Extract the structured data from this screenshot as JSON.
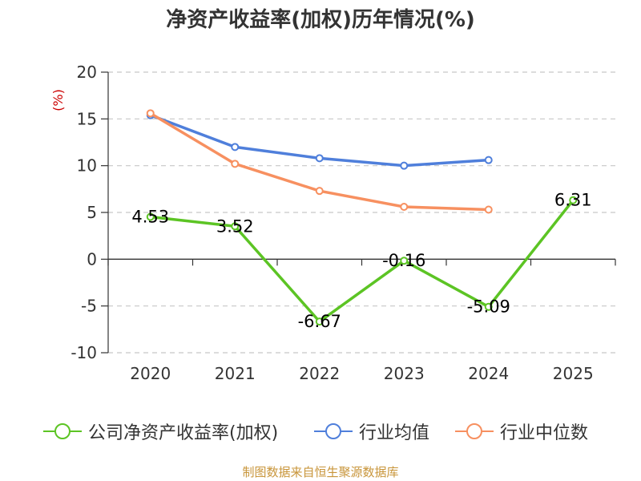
{
  "chart_data": {
    "type": "line",
    "title": "净资产收益率(加权)历年情况(%)",
    "ylabel": "(%)",
    "xlabel": "",
    "categories": [
      "2020",
      "2021",
      "2022",
      "2023",
      "2024",
      "2025"
    ],
    "ylim": [
      -10,
      20
    ],
    "yticks": [
      20,
      15,
      10,
      5,
      0,
      -5,
      -10
    ],
    "grid": true,
    "legend_position": "bottom",
    "series": [
      {
        "name": "公司净资产收益率(加权)",
        "color": "#5cc424",
        "values": [
          4.53,
          3.52,
          -6.67,
          -0.16,
          -5.09,
          6.31
        ],
        "labels": [
          "4.53",
          "3.52",
          "-6.67",
          "-0.16",
          "-5.09",
          "6.31"
        ]
      },
      {
        "name": "行业均值",
        "color": "#4f7fdb",
        "values": [
          15.4,
          12.0,
          10.8,
          10.0,
          10.6,
          null
        ]
      },
      {
        "name": "行业中位数",
        "color": "#f79060",
        "values": [
          15.6,
          10.2,
          7.3,
          5.6,
          5.3,
          null
        ]
      }
    ]
  },
  "source_text": "制图数据来自恒生聚源数据库"
}
